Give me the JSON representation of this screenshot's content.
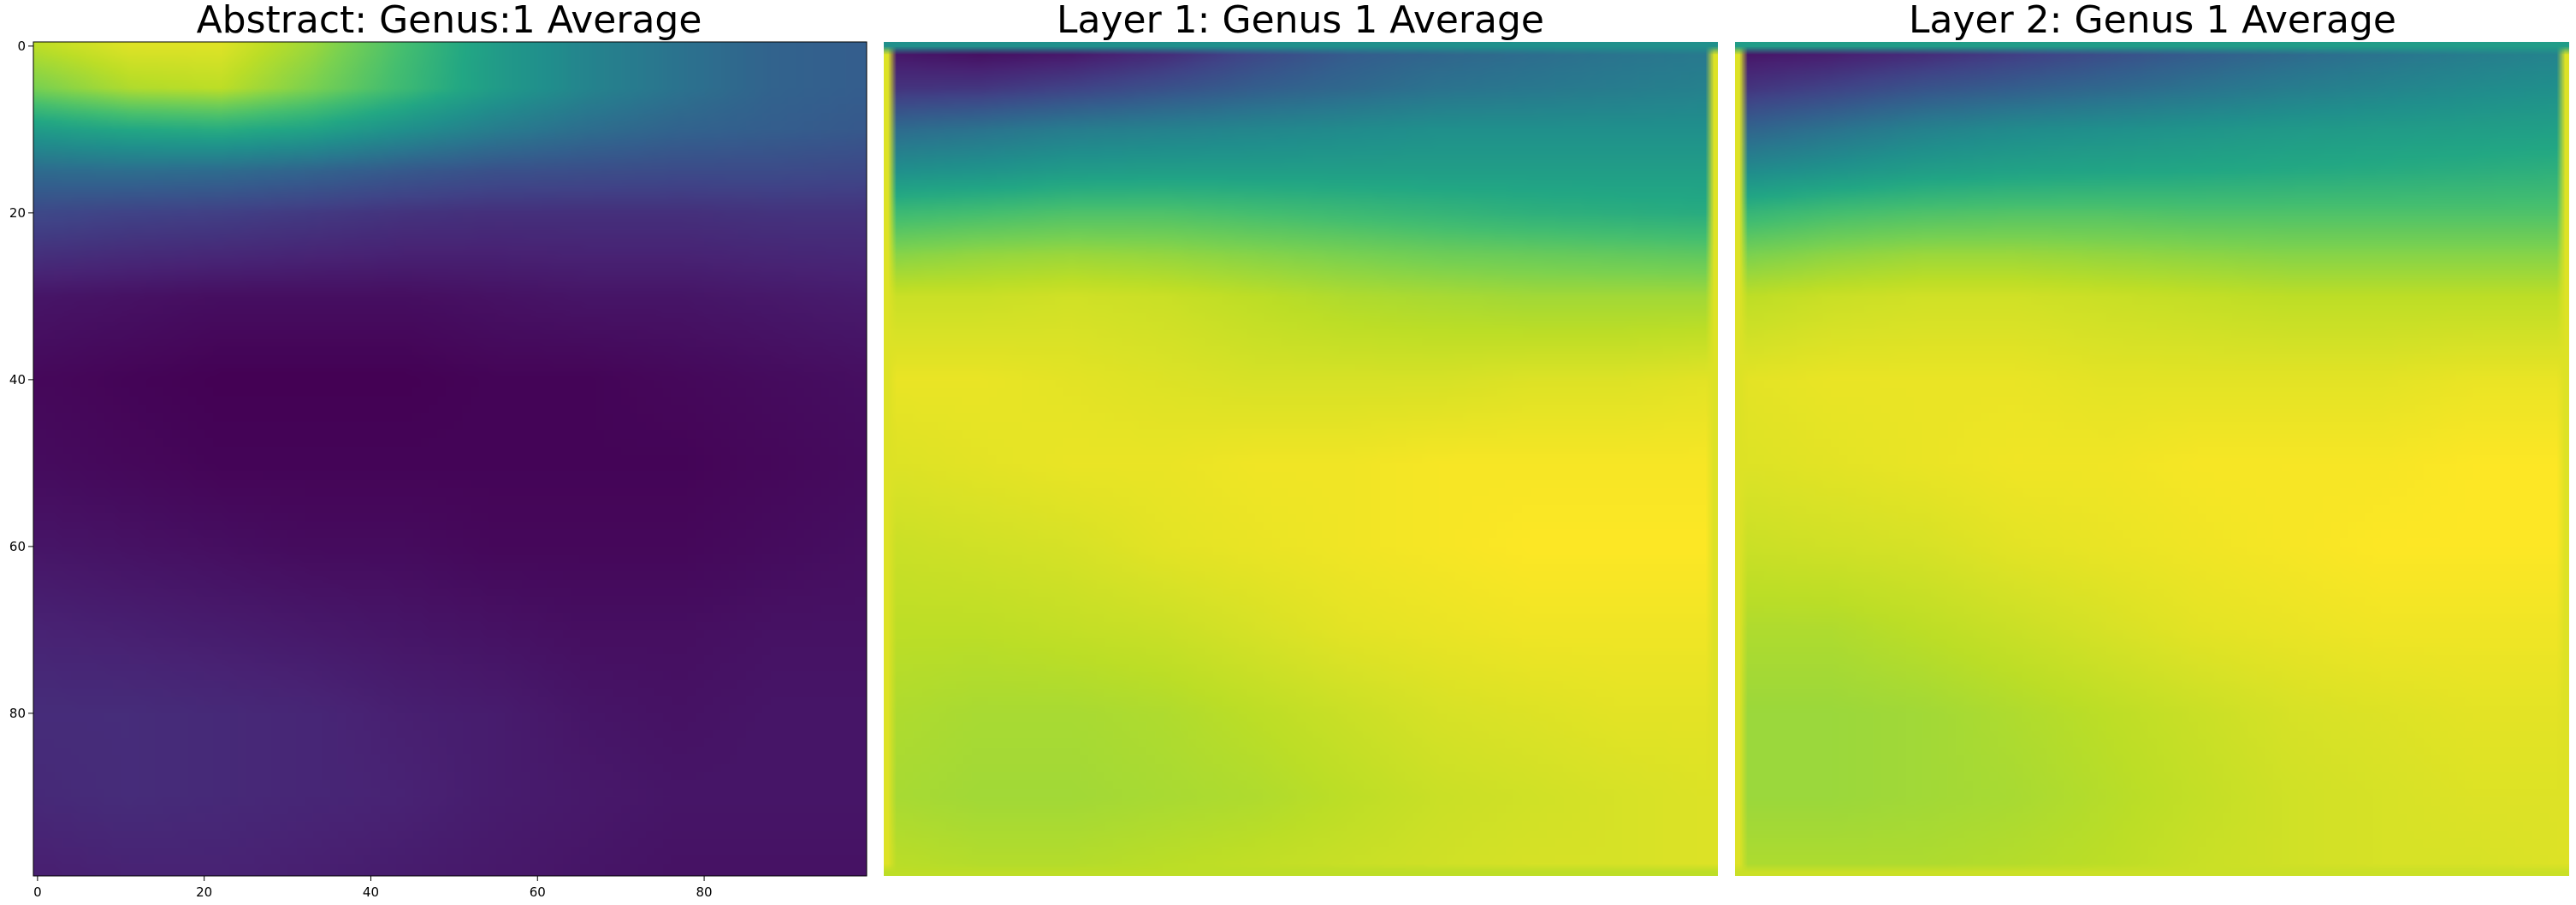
{
  "chart_data": [
    {
      "type": "heatmap",
      "title": "Abstract: Genus:1 Average",
      "colormap": "viridis",
      "xlim": [
        0,
        99
      ],
      "ylim": [
        99,
        0
      ],
      "x_ticks": [
        0,
        20,
        40,
        60,
        80
      ],
      "y_ticks": [
        0,
        20,
        40,
        60,
        80
      ],
      "show_axes": true,
      "border": "none",
      "description_rows": [
        {
          "row": 0,
          "values": [
            0.9,
            0.95,
            0.95,
            0.85,
            0.7,
            0.55,
            0.45,
            0.38,
            0.32,
            0.3
          ]
        },
        {
          "row": 5,
          "values": [
            0.8,
            0.88,
            0.9,
            0.8,
            0.68,
            0.55,
            0.45,
            0.38,
            0.32,
            0.3
          ]
        },
        {
          "row": 10,
          "values": [
            0.55,
            0.6,
            0.62,
            0.58,
            0.5,
            0.42,
            0.36,
            0.32,
            0.3,
            0.28
          ]
        },
        {
          "row": 15,
          "values": [
            0.35,
            0.36,
            0.35,
            0.32,
            0.28,
            0.25,
            0.24,
            0.23,
            0.23,
            0.22
          ]
        },
        {
          "row": 20,
          "values": [
            0.22,
            0.2,
            0.19,
            0.17,
            0.15,
            0.14,
            0.14,
            0.14,
            0.15,
            0.15
          ]
        },
        {
          "row": 30,
          "values": [
            0.06,
            0.05,
            0.04,
            0.04,
            0.04,
            0.05,
            0.06,
            0.06,
            0.07,
            0.08
          ]
        },
        {
          "row": 40,
          "values": [
            0.02,
            0.01,
            0.0,
            0.0,
            0.0,
            0.01,
            0.01,
            0.02,
            0.03,
            0.04
          ]
        },
        {
          "row": 50,
          "values": [
            0.03,
            0.02,
            0.01,
            0.01,
            0.01,
            0.01,
            0.01,
            0.01,
            0.02,
            0.03
          ]
        },
        {
          "row": 60,
          "values": [
            0.06,
            0.05,
            0.04,
            0.03,
            0.03,
            0.02,
            0.02,
            0.02,
            0.03,
            0.04
          ]
        },
        {
          "row": 70,
          "values": [
            0.1,
            0.09,
            0.08,
            0.07,
            0.06,
            0.05,
            0.04,
            0.04,
            0.05,
            0.05
          ]
        },
        {
          "row": 80,
          "values": [
            0.13,
            0.13,
            0.12,
            0.11,
            0.09,
            0.08,
            0.06,
            0.05,
            0.06,
            0.06
          ]
        },
        {
          "row": 90,
          "values": [
            0.12,
            0.13,
            0.12,
            0.11,
            0.1,
            0.08,
            0.07,
            0.06,
            0.06,
            0.06
          ]
        },
        {
          "row": 99,
          "values": [
            0.09,
            0.1,
            0.1,
            0.09,
            0.08,
            0.07,
            0.06,
            0.05,
            0.05,
            0.05
          ]
        }
      ]
    },
    {
      "type": "heatmap",
      "title": "Layer 1: Genus 1 Average",
      "colormap": "viridis",
      "show_axes": false,
      "frame": {
        "top_edge": 0.5,
        "side_edges": 0.95,
        "bottom_edge": 0.9
      },
      "description_rows": [
        {
          "row": 0,
          "values": [
            0.05,
            0.02,
            0.04,
            0.1,
            0.2,
            0.28,
            0.32,
            0.35,
            0.38,
            0.4
          ]
        },
        {
          "row": 5,
          "values": [
            0.15,
            0.16,
            0.2,
            0.25,
            0.3,
            0.34,
            0.38,
            0.4,
            0.42,
            0.44
          ]
        },
        {
          "row": 10,
          "values": [
            0.35,
            0.38,
            0.42,
            0.44,
            0.46,
            0.48,
            0.5,
            0.5,
            0.5,
            0.5
          ]
        },
        {
          "row": 15,
          "values": [
            0.5,
            0.52,
            0.55,
            0.56,
            0.56,
            0.56,
            0.56,
            0.56,
            0.56,
            0.56
          ]
        },
        {
          "row": 20,
          "values": [
            0.68,
            0.7,
            0.72,
            0.72,
            0.7,
            0.68,
            0.66,
            0.64,
            0.63,
            0.62
          ]
        },
        {
          "row": 25,
          "values": [
            0.82,
            0.84,
            0.85,
            0.84,
            0.82,
            0.8,
            0.78,
            0.77,
            0.76,
            0.75
          ]
        },
        {
          "row": 30,
          "values": [
            0.92,
            0.92,
            0.93,
            0.92,
            0.9,
            0.88,
            0.87,
            0.86,
            0.86,
            0.86
          ]
        },
        {
          "row": 40,
          "values": [
            0.97,
            0.97,
            0.96,
            0.95,
            0.94,
            0.94,
            0.94,
            0.95,
            0.95,
            0.96
          ]
        },
        {
          "row": 50,
          "values": [
            0.95,
            0.96,
            0.97,
            0.97,
            0.98,
            0.98,
            0.99,
            0.99,
            0.99,
            0.99
          ]
        },
        {
          "row": 60,
          "values": [
            0.92,
            0.93,
            0.94,
            0.96,
            0.97,
            0.98,
            0.99,
            1.0,
            1.0,
            1.0
          ]
        },
        {
          "row": 70,
          "values": [
            0.9,
            0.9,
            0.91,
            0.92,
            0.94,
            0.96,
            0.97,
            0.98,
            0.98,
            0.98
          ]
        },
        {
          "row": 80,
          "values": [
            0.88,
            0.87,
            0.87,
            0.88,
            0.9,
            0.92,
            0.94,
            0.95,
            0.96,
            0.96
          ]
        },
        {
          "row": 90,
          "values": [
            0.87,
            0.86,
            0.86,
            0.87,
            0.88,
            0.9,
            0.92,
            0.93,
            0.94,
            0.95
          ]
        },
        {
          "row": 99,
          "values": [
            0.9,
            0.89,
            0.89,
            0.9,
            0.91,
            0.92,
            0.93,
            0.94,
            0.94,
            0.95
          ]
        }
      ]
    },
    {
      "type": "heatmap",
      "title": "Layer 2: Genus 1 Average",
      "colormap": "viridis",
      "show_axes": false,
      "frame": {
        "top_edge": 0.55,
        "side_edges": 0.95,
        "bottom_edge": 0.92
      },
      "description_rows": [
        {
          "row": 0,
          "values": [
            0.04,
            0.06,
            0.1,
            0.16,
            0.22,
            0.28,
            0.33,
            0.37,
            0.41,
            0.44
          ]
        },
        {
          "row": 5,
          "values": [
            0.15,
            0.2,
            0.26,
            0.3,
            0.34,
            0.38,
            0.42,
            0.45,
            0.48,
            0.5
          ]
        },
        {
          "row": 10,
          "values": [
            0.32,
            0.38,
            0.44,
            0.48,
            0.5,
            0.52,
            0.54,
            0.55,
            0.56,
            0.57
          ]
        },
        {
          "row": 15,
          "values": [
            0.48,
            0.52,
            0.56,
            0.58,
            0.59,
            0.6,
            0.61,
            0.62,
            0.63,
            0.64
          ]
        },
        {
          "row": 20,
          "values": [
            0.66,
            0.7,
            0.72,
            0.73,
            0.73,
            0.72,
            0.72,
            0.72,
            0.72,
            0.72
          ]
        },
        {
          "row": 25,
          "values": [
            0.8,
            0.83,
            0.85,
            0.85,
            0.84,
            0.83,
            0.82,
            0.82,
            0.82,
            0.82
          ]
        },
        {
          "row": 30,
          "values": [
            0.9,
            0.92,
            0.93,
            0.93,
            0.92,
            0.91,
            0.9,
            0.9,
            0.9,
            0.9
          ]
        },
        {
          "row": 40,
          "values": [
            0.96,
            0.97,
            0.97,
            0.97,
            0.96,
            0.96,
            0.96,
            0.96,
            0.97,
            0.97
          ]
        },
        {
          "row": 50,
          "values": [
            0.95,
            0.96,
            0.97,
            0.98,
            0.98,
            0.99,
            0.99,
            0.99,
            1.0,
            1.0
          ]
        },
        {
          "row": 60,
          "values": [
            0.92,
            0.93,
            0.94,
            0.96,
            0.97,
            0.98,
            0.99,
            1.0,
            1.0,
            1.0
          ]
        },
        {
          "row": 70,
          "values": [
            0.88,
            0.88,
            0.9,
            0.92,
            0.94,
            0.96,
            0.97,
            0.98,
            0.98,
            0.98
          ]
        },
        {
          "row": 80,
          "values": [
            0.85,
            0.85,
            0.86,
            0.88,
            0.9,
            0.92,
            0.94,
            0.95,
            0.96,
            0.96
          ]
        },
        {
          "row": 90,
          "values": [
            0.85,
            0.85,
            0.86,
            0.87,
            0.89,
            0.91,
            0.93,
            0.94,
            0.95,
            0.95
          ]
        },
        {
          "row": 99,
          "values": [
            0.88,
            0.88,
            0.88,
            0.89,
            0.9,
            0.92,
            0.93,
            0.94,
            0.94,
            0.95
          ]
        }
      ]
    }
  ]
}
